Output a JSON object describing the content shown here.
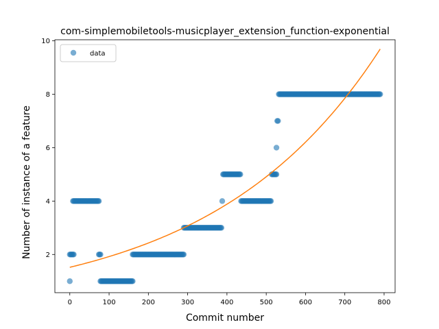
{
  "chart_data": {
    "type": "scatter",
    "title": "com-simplemobiletools-musicplayer_extension_function-exponential",
    "xlabel": "Commit number",
    "ylabel": "Number of instance of a feature",
    "xlim": [
      -38,
      828
    ],
    "ylim": [
      0.57,
      10.04
    ],
    "xticks": [
      0,
      100,
      200,
      300,
      400,
      500,
      600,
      700,
      800
    ],
    "yticks": [
      2,
      4,
      6,
      8,
      10
    ],
    "legend": {
      "position": "top-left",
      "entries": [
        "data"
      ]
    },
    "colors": {
      "data": "#1f77b4",
      "fit": "#ff7f0e"
    },
    "series": [
      {
        "name": "data",
        "kind": "points",
        "segments": [
          {
            "x_start": 0,
            "x_end": 0,
            "y": 1
          },
          {
            "x_start": 0,
            "x_end": 10,
            "y": 2
          },
          {
            "x_start": 8,
            "x_end": 75,
            "y": 4
          },
          {
            "x_start": 74,
            "x_end": 78,
            "y": 2
          },
          {
            "x_start": 78,
            "x_end": 160,
            "y": 1
          },
          {
            "x_start": 160,
            "x_end": 290,
            "y": 2
          },
          {
            "x_start": 290,
            "x_end": 386,
            "y": 3
          },
          {
            "x_start": 388,
            "x_end": 388,
            "y": 4
          },
          {
            "x_start": 390,
            "x_end": 435,
            "y": 5
          },
          {
            "x_start": 436,
            "x_end": 512,
            "y": 4
          },
          {
            "x_start": 514,
            "x_end": 526,
            "y": 5
          },
          {
            "x_start": 526,
            "x_end": 526,
            "y": 6
          },
          {
            "x_start": 528,
            "x_end": 530,
            "y": 7
          },
          {
            "x_start": 532,
            "x_end": 790,
            "y": 8
          }
        ]
      },
      {
        "name": "fit",
        "kind": "line",
        "model": "exponential",
        "a": 1.52,
        "b": 0.002345,
        "x_range": [
          0,
          790
        ]
      }
    ]
  }
}
